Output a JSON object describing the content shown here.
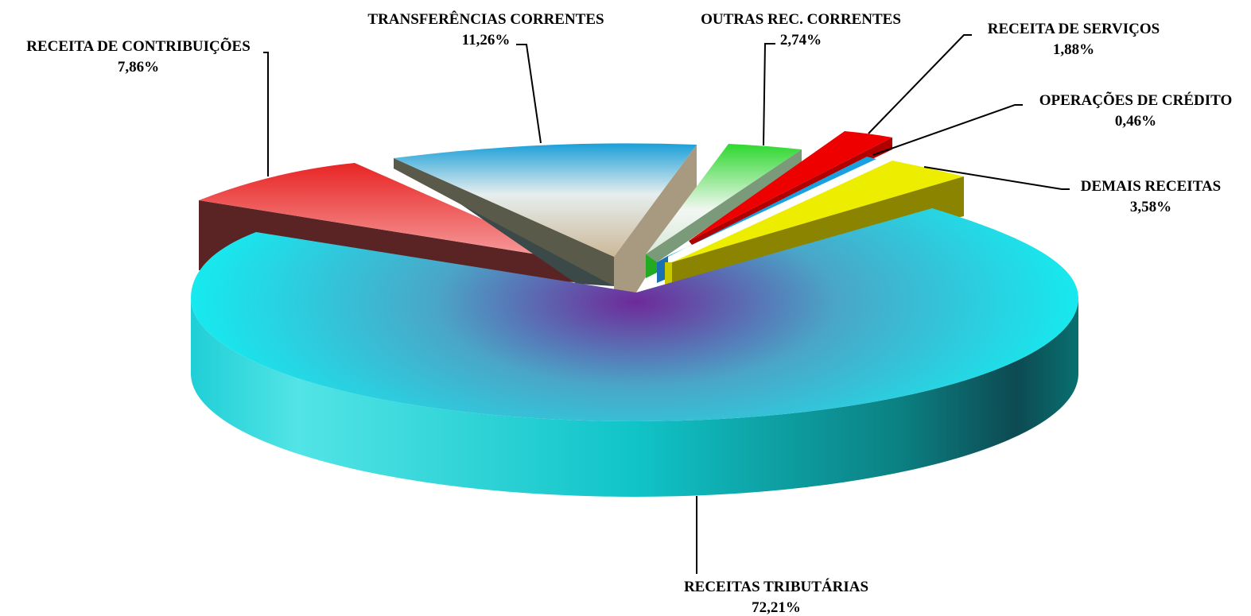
{
  "chart_data": {
    "type": "pie",
    "style": "3d-exploded",
    "legend": "none",
    "slices": [
      {
        "name": "RECEITAS TRIBUTÁRIAS",
        "value": 72.21,
        "label": "72,21%",
        "color": "#18e6ec"
      },
      {
        "name": "RECEITA DE CONTRIBUIÇÕES",
        "value": 7.86,
        "label": "7,86%",
        "color": "#e83030"
      },
      {
        "name": "TRANSFERÊNCIAS CORRENTES",
        "value": 11.26,
        "label": "11,26%",
        "color": "#2aa0d4"
      },
      {
        "name": "OUTRAS REC. CORRENTES",
        "value": 2.74,
        "label": "2,74%",
        "color": "#33dd33"
      },
      {
        "name": "RECEITA DE SERVIÇOS",
        "value": 1.88,
        "label": "1,88%",
        "color": "#ee0000"
      },
      {
        "name": "OPERAÇÕES DE CRÉDITO",
        "value": 0.46,
        "label": "0,46%",
        "color": "#1aa0e0"
      },
      {
        "name": "DEMAIS RECEITAS",
        "value": 3.58,
        "label": "3,58%",
        "color": "#eeee00"
      }
    ]
  }
}
